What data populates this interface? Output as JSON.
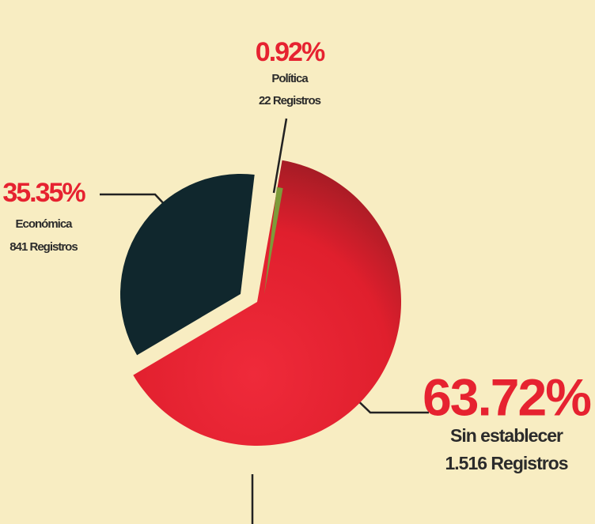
{
  "chart_data": {
    "type": "pie",
    "categories": [
      "Sin establecer",
      "Económica",
      "Política"
    ],
    "values": [
      63.72,
      35.35,
      0.92
    ],
    "value_labels": [
      "63.72%",
      "35.35%",
      "0.92%"
    ],
    "record_labels": [
      "1.516 Registros",
      "841 Registros",
      "22 Registros"
    ],
    "colors": [
      "#e8202f",
      "#10272d",
      "#7d9b3a"
    ]
  }
}
